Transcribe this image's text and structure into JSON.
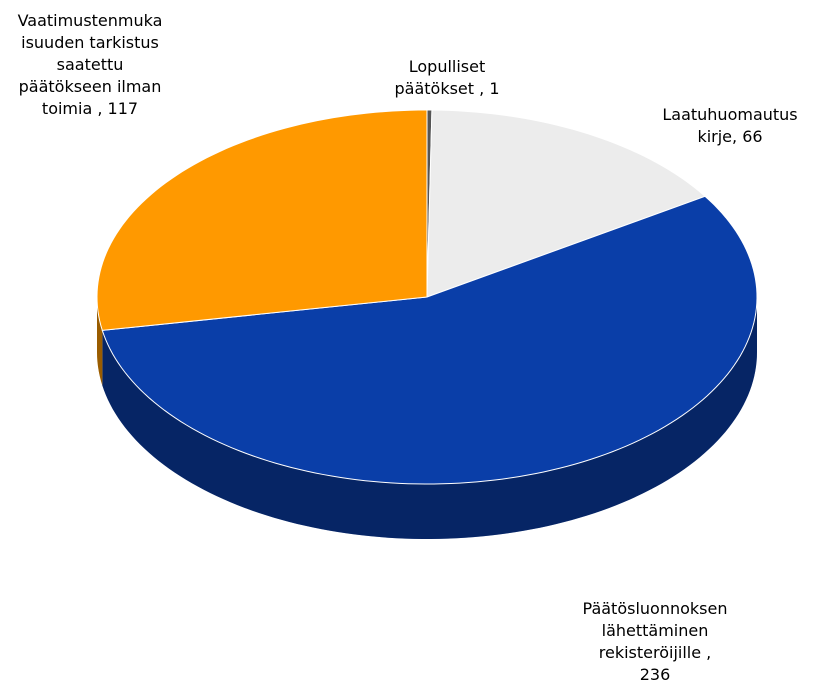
{
  "chart_data": {
    "type": "pie3d",
    "categories": [
      "Lopulliset päätökset ",
      "Laatuhuomautus kirje",
      "Päätösluonnoksen lähettäminen rekisteröijille ",
      "Vaatimustenmukaisuuden tarkistus saatettu päätökseen ilman toimia "
    ],
    "values": [
      1,
      66,
      236,
      117
    ],
    "colors": [
      "#555555",
      "#ececec",
      "#0a3ea8",
      "#ff9900"
    ],
    "label_separator": ", "
  }
}
